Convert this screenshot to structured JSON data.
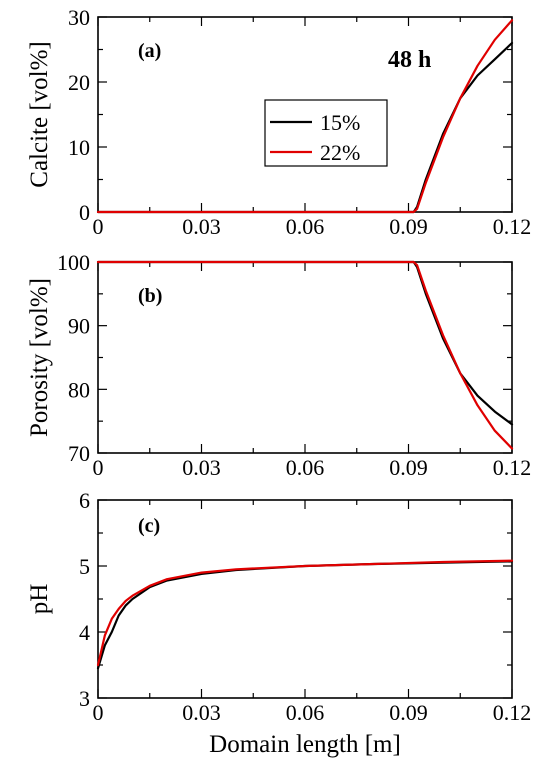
{
  "chart_data": [
    {
      "type": "line",
      "panel_label": "(a)",
      "annotation": "48 h",
      "xlabel": "",
      "ylabel": "Calcite [vol%]",
      "xlim": [
        0,
        0.12
      ],
      "ylim": [
        0,
        30
      ],
      "xticks": [
        "0",
        "0.03",
        "0.06",
        "0.09",
        "0.12"
      ],
      "yticks": [
        "0",
        "10",
        "20",
        "30"
      ],
      "legend": {
        "placement": "center-right",
        "entries": [
          {
            "label": "15%",
            "color": "#000000"
          },
          {
            "label": "22%",
            "color": "#e00000"
          }
        ]
      },
      "series": [
        {
          "name": "15%",
          "color": "#000000",
          "x": [
            0,
            0.09,
            0.0915,
            0.0925,
            0.095,
            0.1,
            0.105,
            0.11,
            0.115,
            0.12
          ],
          "y": [
            0,
            0,
            0,
            0.8,
            5,
            12,
            17.5,
            21,
            23.5,
            26
          ]
        },
        {
          "name": "22%",
          "color": "#e00000",
          "x": [
            0,
            0.09,
            0.0915,
            0.0925,
            0.095,
            0.1,
            0.105,
            0.11,
            0.115,
            0.12
          ],
          "y": [
            0,
            0,
            0,
            0.5,
            4.5,
            11.5,
            17.5,
            22.5,
            26.5,
            29.5
          ]
        }
      ]
    },
    {
      "type": "line",
      "panel_label": "(b)",
      "xlabel": "",
      "ylabel": "Porosity [vol%]",
      "xlim": [
        0,
        0.12
      ],
      "ylim": [
        70,
        100
      ],
      "xticks": [
        "0",
        "0.03",
        "0.06",
        "0.09",
        "0.12"
      ],
      "yticks": [
        "70",
        "80",
        "90",
        "100"
      ],
      "series": [
        {
          "name": "15%",
          "color": "#000000",
          "x": [
            0,
            0.09,
            0.0915,
            0.0925,
            0.095,
            0.1,
            0.105,
            0.11,
            0.115,
            0.12
          ],
          "y": [
            100,
            100,
            100,
            99.2,
            95,
            88,
            82.5,
            79,
            76.5,
            74.5
          ]
        },
        {
          "name": "22%",
          "color": "#e00000",
          "x": [
            0,
            0.09,
            0.0915,
            0.0925,
            0.095,
            0.1,
            0.105,
            0.11,
            0.115,
            0.12
          ],
          "y": [
            100,
            100,
            100,
            99.5,
            95.5,
            88.5,
            82.5,
            77.5,
            73.5,
            70.7
          ]
        }
      ]
    },
    {
      "type": "line",
      "panel_label": "(c)",
      "xlabel": "Domain length [m]",
      "ylabel": "pH",
      "xlim": [
        0,
        0.12
      ],
      "ylim": [
        3,
        6
      ],
      "xticks": [
        "0",
        "0.03",
        "0.06",
        "0.09",
        "0.12"
      ],
      "yticks": [
        "3",
        "4",
        "5",
        "6"
      ],
      "series": [
        {
          "name": "15%",
          "color": "#000000",
          "x": [
            0,
            0.002,
            0.004,
            0.006,
            0.008,
            0.01,
            0.015,
            0.02,
            0.03,
            0.04,
            0.06,
            0.08,
            0.1,
            0.12
          ],
          "y": [
            3.45,
            3.8,
            4.0,
            4.25,
            4.4,
            4.5,
            4.68,
            4.78,
            4.88,
            4.94,
            5.0,
            5.03,
            5.05,
            5.07
          ]
        },
        {
          "name": "22%",
          "color": "#e00000",
          "x": [
            0,
            0.002,
            0.004,
            0.006,
            0.008,
            0.01,
            0.015,
            0.02,
            0.03,
            0.04,
            0.06,
            0.08,
            0.1,
            0.12
          ],
          "y": [
            3.5,
            3.95,
            4.2,
            4.35,
            4.47,
            4.55,
            4.7,
            4.8,
            4.9,
            4.95,
            5.0,
            5.03,
            5.06,
            5.08
          ]
        }
      ]
    }
  ]
}
